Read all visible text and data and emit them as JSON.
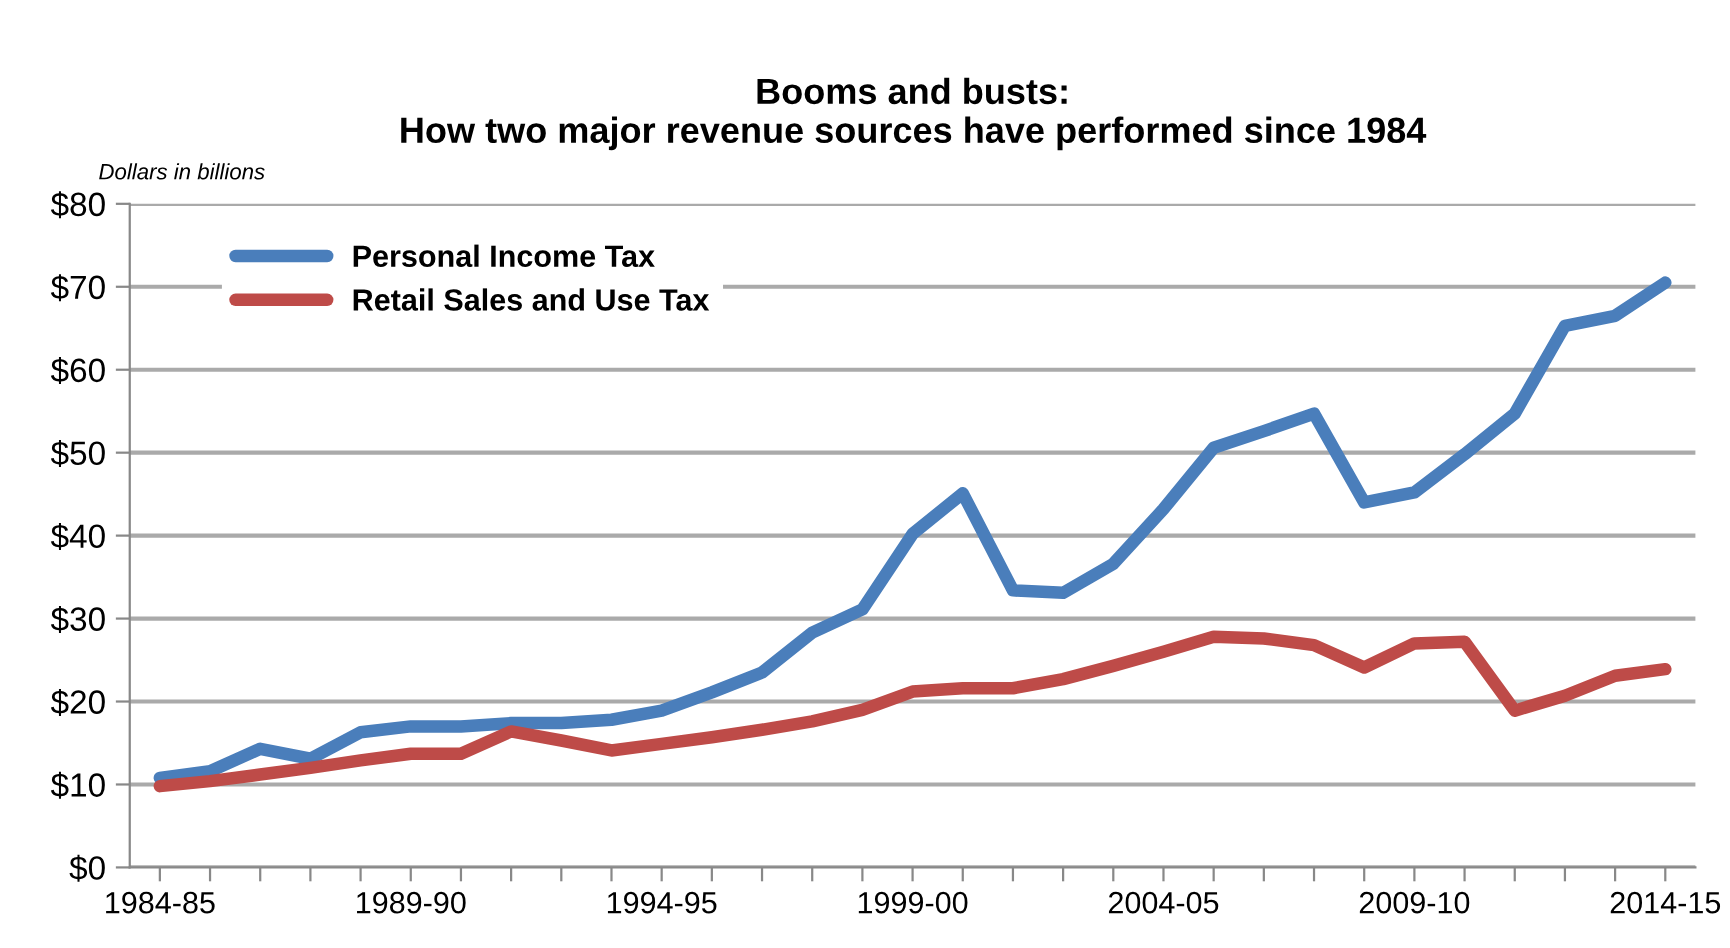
{
  "chart_data": {
    "type": "line",
    "title": "Booms and busts:\nHow two major revenue sources have performed since 1984",
    "ylabel": "Dollars in billions",
    "categories": [
      "1984-85",
      null,
      null,
      null,
      null,
      "1989-90",
      null,
      null,
      null,
      null,
      "1994-95",
      null,
      null,
      null,
      null,
      "1999-00",
      null,
      null,
      null,
      null,
      "2004-05",
      null,
      null,
      null,
      null,
      "2009-10",
      null,
      null,
      null,
      null,
      "2014-15"
    ],
    "series": [
      {
        "name": "Personal Income Tax",
        "color": "#4a7ebb",
        "values": [
          10.8,
          11.6,
          14.3,
          13.1,
          16.3,
          17.0,
          17.0,
          17.4,
          17.4,
          17.8,
          18.9,
          21.1,
          23.5,
          28.3,
          31.1,
          40.2,
          45.1,
          33.4,
          33.1,
          36.6,
          43.2,
          50.6,
          52.6,
          54.7,
          44.0,
          45.2,
          49.8,
          54.7,
          65.3,
          66.5,
          70.5
        ]
      },
      {
        "name": "Retail Sales and Use Tax",
        "color": "#be4b48",
        "values": [
          9.8,
          10.4,
          11.2,
          12.0,
          12.9,
          13.7,
          13.7,
          16.4,
          15.3,
          14.1,
          14.9,
          15.7,
          16.6,
          17.6,
          19.0,
          21.2,
          21.6,
          21.6,
          22.7,
          24.3,
          26.0,
          27.8,
          27.6,
          26.8,
          24.1,
          27.0,
          27.2,
          18.9,
          20.7,
          23.1,
          23.9
        ]
      }
    ],
    "ylim": [
      0,
      80
    ],
    "yticks": [
      {
        "value": 0,
        "label": "$0"
      },
      {
        "value": 10,
        "label": "$10"
      },
      {
        "value": 20,
        "label": "$20"
      },
      {
        "value": 30,
        "label": "$30"
      },
      {
        "value": 40,
        "label": "$40"
      },
      {
        "value": 50,
        "label": "$50"
      },
      {
        "value": 60,
        "label": "$60"
      },
      {
        "value": 70,
        "label": "$70"
      },
      {
        "value": 80,
        "label": "$80"
      }
    ],
    "grid": "y",
    "legend": "top left",
    "marker": "none",
    "line_style": "solid"
  }
}
